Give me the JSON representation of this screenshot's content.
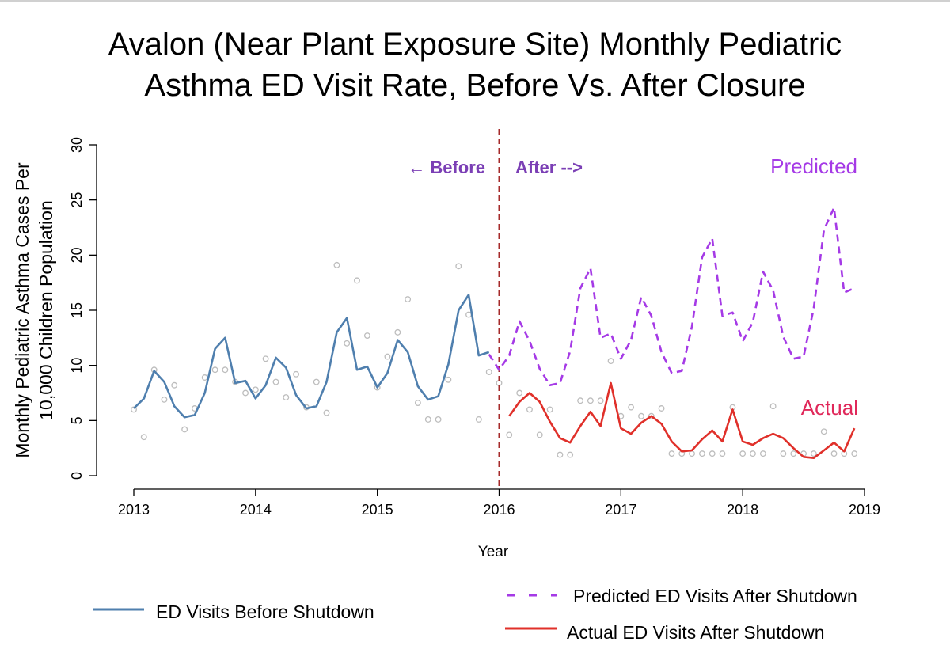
{
  "title": {
    "line1": "Avalon (Near Plant Exposure Site) Monthly Pediatric",
    "line2": "Asthma ED Visit Rate, Before Vs. After Closure"
  },
  "annotations": {
    "before": "← Before",
    "after": "After -->",
    "predicted": "Predicted",
    "actual": "Actual"
  },
  "legend": {
    "before": "ED Visits Before Shutdown",
    "predicted": "Predicted ED Visits After Shutdown",
    "actual": "Actual ED Visits After Shutdown"
  },
  "colors": {
    "before": "#4f7fae",
    "predicted": "#a53ae6",
    "actual": "#e0302a",
    "points": "#bdbdbd",
    "shutdown_line": "#a52a2a"
  },
  "chart_data": {
    "type": "line",
    "xlabel": "Year",
    "ylabel_line1": "Monthly Pediatric Asthma Cases Per",
    "ylabel_line2": "10,000 Children Population",
    "xlim": [
      2013,
      2019
    ],
    "ylim": [
      0,
      30
    ],
    "x_ticks": [
      2013,
      2014,
      2015,
      2016,
      2017,
      2018,
      2019
    ],
    "y_ticks": [
      0,
      5,
      10,
      15,
      20,
      25,
      30
    ],
    "shutdown_x": 2016,
    "series": [
      {
        "name": "ED Visits Before Shutdown",
        "style": "solid",
        "x": [
          2013.0,
          2013.083,
          2013.167,
          2013.25,
          2013.333,
          2013.417,
          2013.5,
          2013.583,
          2013.667,
          2013.75,
          2013.833,
          2013.917,
          2014.0,
          2014.083,
          2014.167,
          2014.25,
          2014.333,
          2014.417,
          2014.5,
          2014.583,
          2014.667,
          2014.75,
          2014.833,
          2014.917,
          2015.0,
          2015.083,
          2015.167,
          2015.25,
          2015.333,
          2015.417,
          2015.5,
          2015.583,
          2015.667,
          2015.75,
          2015.833,
          2015.917
        ],
        "y": [
          6.1,
          7.0,
          9.5,
          8.5,
          6.3,
          5.3,
          5.5,
          7.5,
          11.5,
          12.5,
          8.4,
          8.6,
          7.0,
          8.2,
          10.7,
          9.8,
          7.3,
          6.1,
          6.3,
          8.5,
          13.0,
          14.3,
          9.6,
          9.9,
          8.0,
          9.3,
          12.3,
          11.2,
          8.1,
          6.9,
          7.2,
          10.1,
          15.0,
          16.4,
          10.9,
          11.2
        ]
      },
      {
        "name": "Predicted ED Visits After Shutdown",
        "style": "dashed",
        "x": [
          2015.917,
          2016.0,
          2016.083,
          2016.167,
          2016.25,
          2016.333,
          2016.417,
          2016.5,
          2016.583,
          2016.667,
          2016.75,
          2016.833,
          2016.917,
          2017.0,
          2017.083,
          2017.167,
          2017.25,
          2017.333,
          2017.417,
          2017.5,
          2017.583,
          2017.667,
          2017.75,
          2017.833,
          2017.917,
          2018.0,
          2018.083,
          2018.167,
          2018.25,
          2018.333,
          2018.417,
          2018.5,
          2018.583,
          2018.667,
          2018.75,
          2018.833,
          2018.917
        ],
        "y": [
          11.0,
          9.6,
          10.9,
          14.0,
          12.2,
          9.7,
          8.2,
          8.4,
          11.3,
          17.0,
          18.8,
          12.5,
          12.9,
          10.6,
          12.3,
          16.2,
          14.5,
          11.2,
          9.3,
          9.5,
          13.5,
          19.8,
          21.5,
          14.5,
          14.8,
          12.2,
          13.9,
          18.5,
          16.8,
          12.6,
          10.6,
          10.8,
          15.2,
          22.3,
          24.3,
          16.6,
          17.0
        ]
      },
      {
        "name": "Actual ED Visits After Shutdown",
        "style": "solid",
        "x": [
          2016.083,
          2016.167,
          2016.25,
          2016.333,
          2016.417,
          2016.5,
          2016.583,
          2016.667,
          2016.75,
          2016.833,
          2016.917,
          2017.0,
          2017.083,
          2017.167,
          2017.25,
          2017.333,
          2017.417,
          2017.5,
          2017.583,
          2017.667,
          2017.75,
          2017.833,
          2017.917,
          2018.0,
          2018.083,
          2018.167,
          2018.25,
          2018.333,
          2018.417,
          2018.5,
          2018.583,
          2018.667,
          2018.75,
          2018.833,
          2018.917
        ],
        "y": [
          5.4,
          6.7,
          7.5,
          6.7,
          4.9,
          3.4,
          3.0,
          4.5,
          5.8,
          4.5,
          8.4,
          4.3,
          3.8,
          4.8,
          5.4,
          4.7,
          3.1,
          2.2,
          2.3,
          3.3,
          4.1,
          3.1,
          6.0,
          3.1,
          2.8,
          3.4,
          3.8,
          3.4,
          2.5,
          1.7,
          1.6,
          2.3,
          3.0,
          2.2,
          4.3
        ]
      }
    ],
    "observed_points": {
      "x": [
        2013.0,
        2013.083,
        2013.167,
        2013.25,
        2013.333,
        2013.417,
        2013.5,
        2013.583,
        2013.667,
        2013.75,
        2013.833,
        2013.917,
        2014.0,
        2014.083,
        2014.167,
        2014.25,
        2014.333,
        2014.417,
        2014.5,
        2014.583,
        2014.667,
        2014.75,
        2014.833,
        2014.917,
        2015.0,
        2015.083,
        2015.167,
        2015.25,
        2015.333,
        2015.417,
        2015.5,
        2015.583,
        2015.667,
        2015.75,
        2015.833,
        2015.917,
        2016.0,
        2016.083,
        2016.167,
        2016.25,
        2016.333,
        2016.417,
        2016.5,
        2016.583,
        2016.667,
        2016.75,
        2016.833,
        2016.917,
        2017.0,
        2017.083,
        2017.167,
        2017.25,
        2017.333,
        2017.417,
        2017.5,
        2017.583,
        2017.667,
        2017.75,
        2017.833,
        2017.917,
        2018.0,
        2018.083,
        2018.167,
        2018.25,
        2018.333,
        2018.417,
        2018.5,
        2018.583,
        2018.667,
        2018.75,
        2018.833,
        2018.917
      ],
      "y": [
        6.0,
        3.5,
        9.6,
        6.9,
        8.2,
        4.2,
        6.1,
        8.9,
        9.6,
        9.6,
        8.5,
        7.5,
        7.8,
        10.6,
        8.5,
        7.1,
        9.2,
        6.2,
        8.5,
        5.7,
        19.1,
        12.0,
        17.7,
        12.7,
        8.0,
        10.8,
        13.0,
        16.0,
        6.6,
        5.1,
        5.1,
        8.7,
        19.0,
        14.6,
        5.1,
        9.4,
        8.4,
        3.7,
        7.5,
        6.0,
        3.7,
        6.0,
        1.9,
        1.9,
        6.8,
        6.8,
        6.8,
        10.4,
        5.4,
        6.2,
        5.4,
        5.4,
        6.1,
        2.0,
        2.0,
        2.0,
        2.0,
        2.0,
        2.0,
        6.2,
        2.0,
        2.0,
        2.0,
        6.3,
        2.0,
        2.0,
        2.0,
        2.0,
        4.0,
        2.0,
        2.0,
        2.0
      ]
    }
  }
}
